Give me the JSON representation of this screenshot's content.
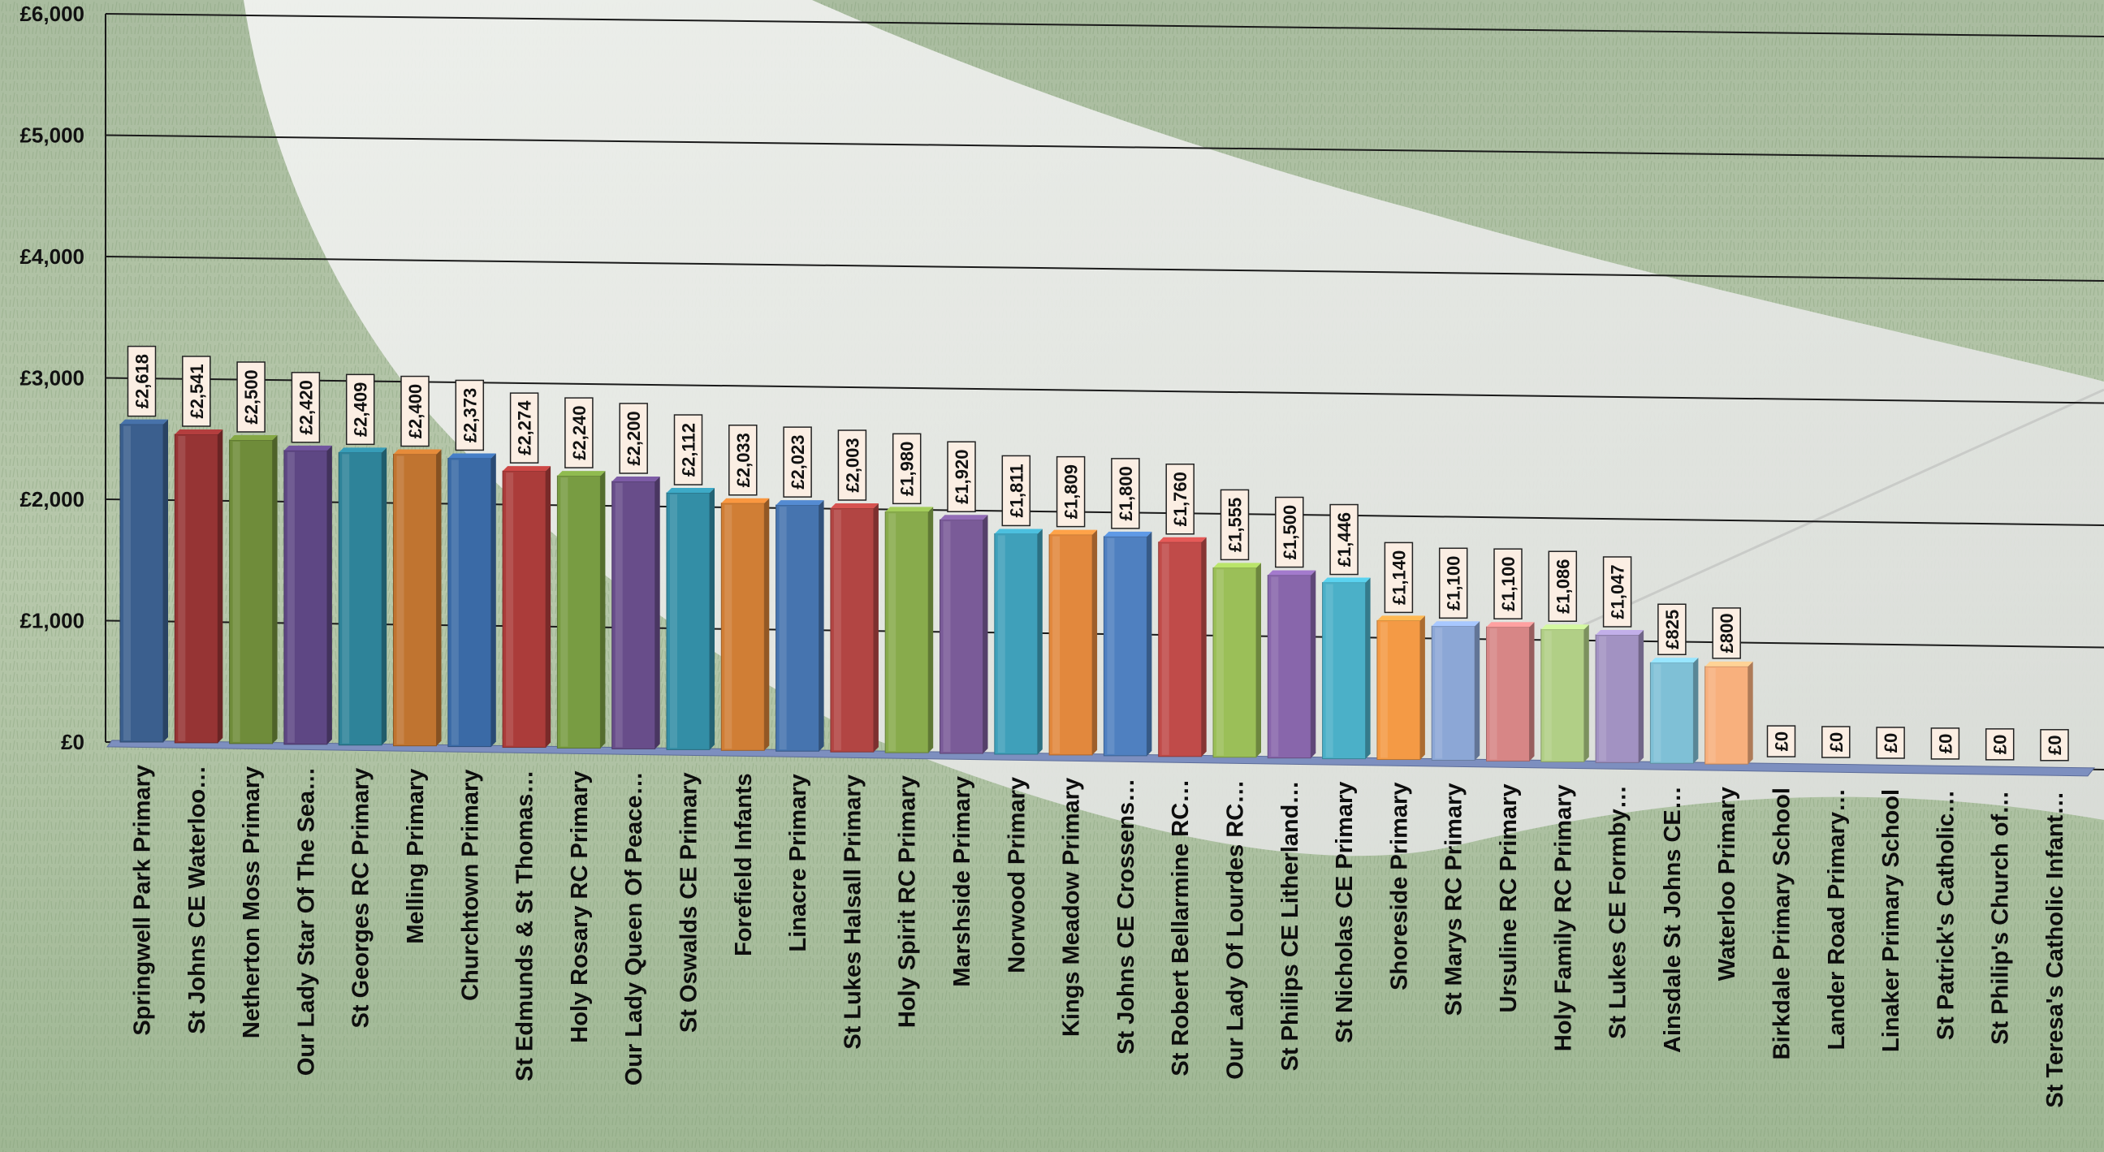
{
  "chart_data": {
    "type": "bar",
    "title": "",
    "xlabel": "",
    "ylabel": "",
    "ylim": [
      0,
      6000
    ],
    "y_ticks": [
      "£0",
      "£1,000",
      "£2,000",
      "£3,000",
      "£4,000",
      "£5,000",
      "£6,000"
    ],
    "grid": true,
    "legend": "none",
    "categories": [
      "Springwell Park Primary",
      "St Johns CE Waterloo…",
      "Netherton Moss Primary",
      "Our Lady Star Of The Sea…",
      "St Georges RC Primary",
      "Melling Primary",
      "Churchtown Primary",
      "St Edmunds & St Thomas…",
      "Holy Rosary RC Primary",
      "Our Lady Queen Of Peace…",
      "St Oswalds CE Primary",
      "Forefield Infants",
      "Linacre Primary",
      "St Lukes Halsall Primary",
      "Holy Spirit RC Primary",
      "Marshside Primary",
      "Norwood Primary",
      "Kings Meadow Primary",
      "St Johns CE Crossens…",
      "St Robert Bellarmine RC…",
      "Our Lady Of Lourdes RC…",
      "St Philips CE Litherland…",
      "St Nicholas CE Primary",
      "Shoreside Primary",
      "St Marys RC Primary",
      "Ursuline RC Primary",
      "Holy Family RC Primary",
      "St Lukes CE Formby…",
      "Ainsdale St Johns CE…",
      "Waterloo Primary",
      "Birkdale Primary School",
      "Lander Road Primary…",
      "Linaker Primary School",
      "St Patrick's Catholic…",
      "St Philip's Church of…",
      "St Teresa's Catholic Infant…"
    ],
    "values": [
      2618,
      2541,
      2500,
      2420,
      2409,
      2400,
      2373,
      2274,
      2240,
      2200,
      2112,
      2033,
      2023,
      2003,
      1980,
      1920,
      1811,
      1809,
      1800,
      1760,
      1555,
      1500,
      1446,
      1140,
      1100,
      1100,
      1086,
      1047,
      825,
      800,
      0,
      0,
      0,
      0,
      0,
      0
    ],
    "data_labels": [
      "£2,618",
      "£2,541",
      "£2,500",
      "£2,420",
      "£2,409",
      "£2,400",
      "£2,373",
      "£2,274",
      "£2,240",
      "£2,200",
      "£2,112",
      "£2,033",
      "£2,023",
      "£2,003",
      "£1,980",
      "£1,920",
      "£1,811",
      "£1,809",
      "£1,800",
      "£1,760",
      "£1,555",
      "£1,500",
      "£1,446",
      "£1,140",
      "£1,100",
      "£1,100",
      "£1,086",
      "£1,047",
      "£825",
      "£800",
      "£0",
      "£0",
      "£0",
      "£0",
      "£0",
      "£0"
    ],
    "colors": [
      "#3b5f8e",
      "#963434",
      "#6f8c3a",
      "#5e4784",
      "#2e8399",
      "#c07430",
      "#3a6aa6",
      "#ab3c3a",
      "#789c42",
      "#684d8a",
      "#338ea6",
      "#d07e35",
      "#4674af",
      "#b24543",
      "#88ab4c",
      "#7a5b98",
      "#3fa0ba",
      "#e2883d",
      "#4f80c0",
      "#c04b49",
      "#9bbf58",
      "#8866ab",
      "#4bb0c8",
      "#f49a45",
      "#8ca7d6",
      "#d78686",
      "#b1cf86",
      "#a292c2",
      "#7fc0d6",
      "#f8b07d",
      "#adc4e7",
      "#e7a7a7",
      "#c8dea6",
      "#bcb0d6",
      "#a6d6e6",
      "#fbcaa6"
    ]
  }
}
